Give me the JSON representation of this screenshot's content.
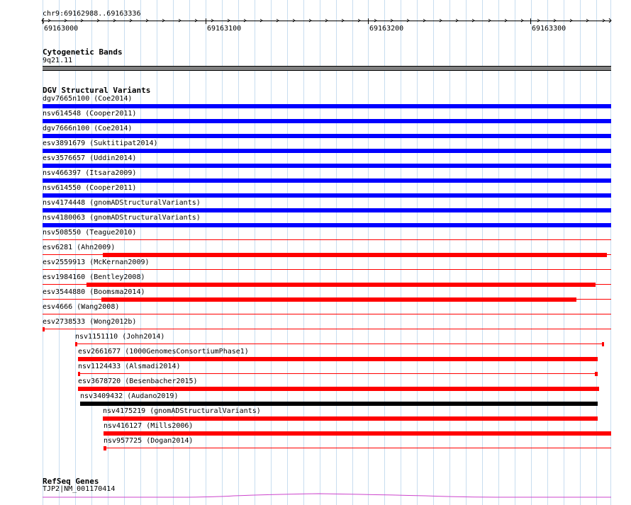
{
  "header": {
    "coordinate_range": "chr9:69162988..69163336",
    "ruler_ticks": [
      "69163000",
      "69163100",
      "69163200",
      "69163300"
    ]
  },
  "cytoband_track": {
    "title": "Cytogenetic Bands",
    "band_label": "9q21.11",
    "band_color": "#808080"
  },
  "dgv_track": {
    "title": "DGV Structural Variants",
    "colors": {
      "loss": "#0000ff",
      "gain": "#ff0000",
      "complex": "#000000",
      "line": "#ff0000"
    },
    "variants": [
      {
        "label": "dgv7665n100 (Coe2014)",
        "type": "loss"
      },
      {
        "label": "nsv614548 (Cooper2011)",
        "type": "loss"
      },
      {
        "label": "dgv7666n100 (Coe2014)",
        "type": "loss"
      },
      {
        "label": "esv3891679 (Suktitipat2014)",
        "type": "loss"
      },
      {
        "label": "esv3576657 (Uddin2014)",
        "type": "loss"
      },
      {
        "label": "nsv466397 (Itsara2009)",
        "type": "loss"
      },
      {
        "label": "nsv614550 (Cooper2011)",
        "type": "loss"
      },
      {
        "label": "nsv4174448 (gnomADStructuralVariants)",
        "type": "loss"
      },
      {
        "label": "nsv4180063 (gnomADStructuralVariants)",
        "type": "loss"
      },
      {
        "label": "nsv508550 (Teague2010)",
        "type": "gain"
      },
      {
        "label": "esv6281 (Ahn2009)",
        "type": "gain"
      },
      {
        "label": "esv2559913 (McKernan2009)",
        "type": "gain"
      },
      {
        "label": "esv1984160 (Bentley2008)",
        "type": "gain"
      },
      {
        "label": "esv3544880 (Boomsma2014)",
        "type": "gain"
      },
      {
        "label": "esv4666 (Wang2008)",
        "type": "gain"
      },
      {
        "label": "esv2738533 (Wong2012b)",
        "type": "gain"
      },
      {
        "label": "nsv1151110 (John2014)",
        "type": "gain"
      },
      {
        "label": "esv2661677 (1000GenomesConsortiumPhase1)",
        "type": "gain"
      },
      {
        "label": "nsv1124433 (Alsmadi2014)",
        "type": "gain"
      },
      {
        "label": "esv3678720 (Besenbacher2015)",
        "type": "gain"
      },
      {
        "label": "nsv3409432 (Audano2019)",
        "type": "complex"
      },
      {
        "label": "nsv4175219 (gnomADStructuralVariants)",
        "type": "gain"
      },
      {
        "label": "nsv416127 (Mills2006)",
        "type": "gain"
      },
      {
        "label": "nsv957725 (Dogan2014)",
        "type": "gain"
      }
    ]
  },
  "refseq_track": {
    "title": "RefSeq Genes",
    "gene_label": "TJP2|NM_001170414",
    "gene_color": "#cc44cc"
  }
}
